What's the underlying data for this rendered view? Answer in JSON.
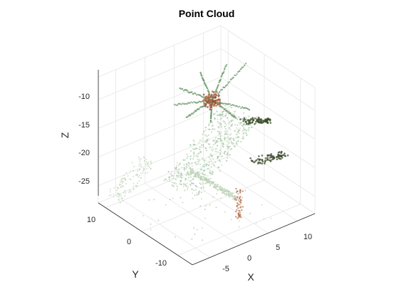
{
  "chart_data": {
    "type": "scatter",
    "title": "Point Cloud",
    "xlabel": "X",
    "ylabel": "Y",
    "zlabel": "Z",
    "x_ticks": [
      "-5",
      "0",
      "5",
      "10"
    ],
    "y_ticks": [
      "10",
      "0",
      "-10"
    ],
    "z_ticks": [
      "-10",
      "-15",
      "-20",
      "-25"
    ],
    "xlim": [
      -8,
      13
    ],
    "ylim": [
      -14,
      12
    ],
    "zlim": [
      -28,
      -6
    ],
    "grid": true,
    "colors": {
      "leaf_green": "#5a8a5a",
      "pale_green": "#b8d0b0",
      "bark_brown": "#b06a48",
      "dark_olive": "#3a4a2a"
    }
  }
}
